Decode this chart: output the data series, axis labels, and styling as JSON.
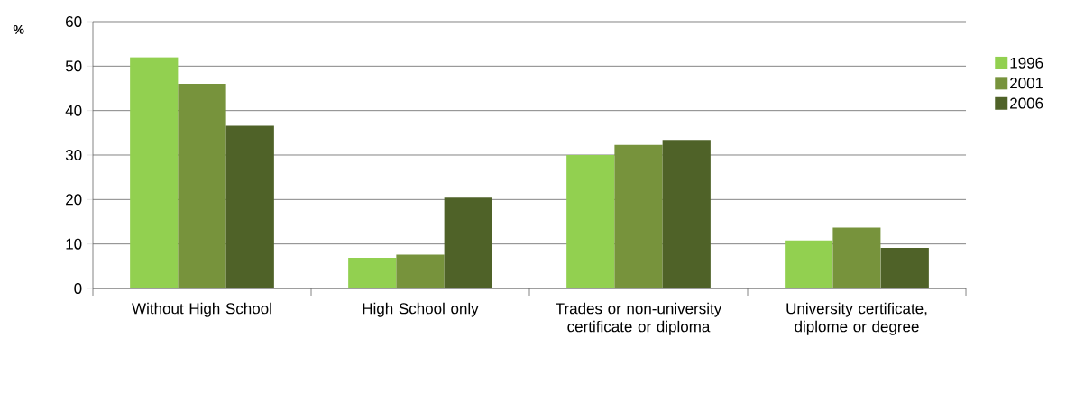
{
  "chart_data": {
    "type": "bar",
    "ylabel": "%",
    "categories": [
      "Without High School",
      "High School only",
      "Trades or non-university certificate or diploma",
      "University certificate, diplome or degree"
    ],
    "series": [
      {
        "name": "1996",
        "color": "#92d050",
        "values": [
          52.0,
          6.9,
          30.0,
          10.8
        ]
      },
      {
        "name": "2001",
        "color": "#77933c",
        "values": [
          46.0,
          7.6,
          32.3,
          13.7
        ]
      },
      {
        "name": "2006",
        "color": "#4f6228",
        "values": [
          36.6,
          20.4,
          33.4,
          9.1
        ]
      }
    ],
    "ylim": [
      0,
      60
    ],
    "yticks": [
      0,
      10,
      20,
      30,
      40,
      50,
      60
    ],
    "grid": "y",
    "legend": "right"
  }
}
